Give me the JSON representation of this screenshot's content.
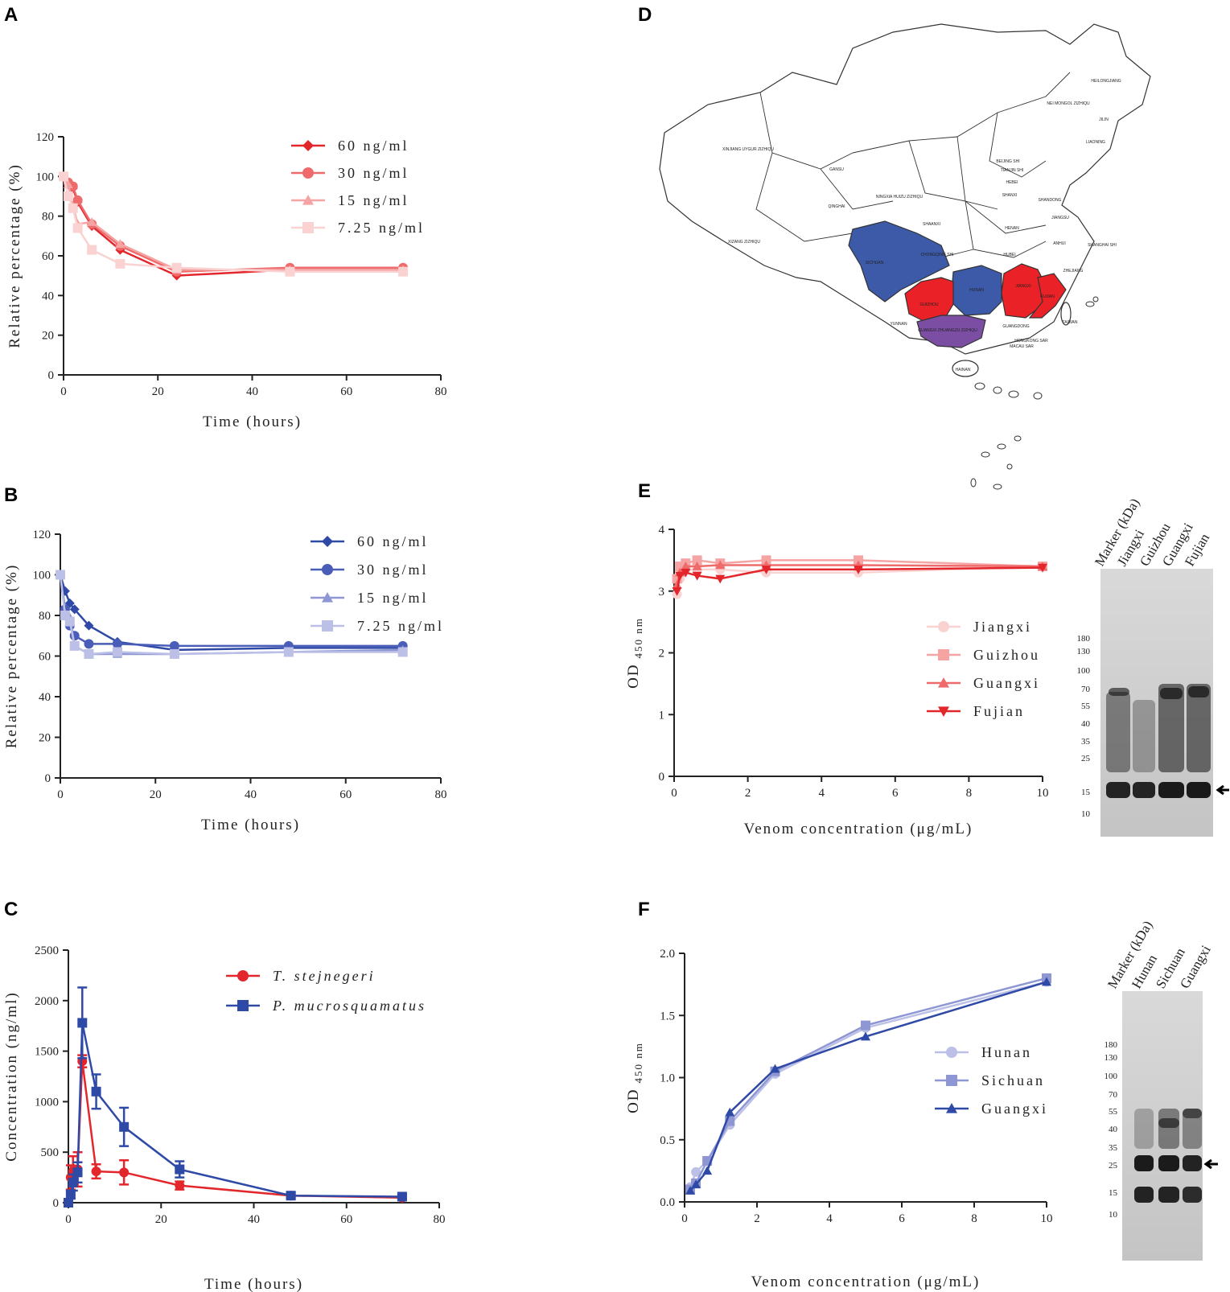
{
  "panels": {
    "A": "A",
    "B": "B",
    "C": "C",
    "D": "D",
    "E": "E",
    "F": "F"
  },
  "colors": {
    "red_dark": "#e3262b",
    "red_mid": "#ef6b6b",
    "red_light": "#f5a3a3",
    "red_pale": "#fad2d2",
    "blue_dark": "#2f4aa6",
    "blue_mid": "#4a5db8",
    "blue_light": "#8e96d3",
    "blue_pale": "#bcc0e6",
    "map_red": "#ea2127",
    "map_blue": "#3c5aa8",
    "map_purple": "#7b4ea3"
  },
  "chart_data": [
    {
      "id": "A",
      "type": "line",
      "xlabel": "Time (hours)",
      "ylabel": "Relative percentage (%)",
      "xlim": [
        0,
        80
      ],
      "ylim": [
        0,
        120
      ],
      "xticks": [
        0,
        20,
        40,
        60,
        80
      ],
      "yticks": [
        0,
        20,
        40,
        60,
        80,
        100,
        120
      ],
      "series": [
        {
          "name": "60 ng/ml",
          "marker": "diamond",
          "color": "#e3262b",
          "x": [
            0,
            1,
            2,
            3,
            6,
            12,
            24,
            48,
            72
          ],
          "y": [
            100,
            96,
            94,
            87,
            75,
            63,
            50,
            53,
            53
          ]
        },
        {
          "name": "30 ng/ml",
          "marker": "circle",
          "color": "#ef6b6b",
          "x": [
            0,
            1,
            2,
            3,
            6,
            12,
            24,
            48,
            72
          ],
          "y": [
            100,
            97,
            95,
            88,
            76,
            65,
            52,
            54,
            54
          ]
        },
        {
          "name": "15 ng/ml",
          "marker": "triangle",
          "color": "#f5a3a3",
          "x": [
            0,
            1,
            2,
            3,
            6,
            12,
            24,
            48,
            72
          ],
          "y": [
            100,
            96,
            85,
            76,
            77,
            66,
            53,
            53,
            53
          ]
        },
        {
          "name": "7.25 ng/ml",
          "marker": "square",
          "color": "#fad2d2",
          "x": [
            0,
            1,
            2,
            3,
            6,
            12,
            24,
            48,
            72
          ],
          "y": [
            100,
            90,
            84,
            74,
            63,
            56,
            54,
            52,
            52
          ]
        }
      ]
    },
    {
      "id": "B",
      "type": "line",
      "xlabel": "Time (hours)",
      "ylabel": "Relative percentage (%)",
      "xlim": [
        0,
        80
      ],
      "ylim": [
        0,
        120
      ],
      "xticks": [
        0,
        20,
        40,
        60,
        80
      ],
      "yticks": [
        0,
        20,
        40,
        60,
        80,
        100,
        120
      ],
      "series": [
        {
          "name": "60 ng/ml",
          "marker": "diamond",
          "color": "#2f4aa6",
          "x": [
            0,
            1,
            2,
            3,
            6,
            12,
            24,
            48,
            72
          ],
          "y": [
            100,
            92,
            86,
            83,
            75,
            67,
            63,
            64,
            64
          ]
        },
        {
          "name": "30 ng/ml",
          "marker": "circle",
          "color": "#4a5db8",
          "x": [
            0,
            1,
            2,
            3,
            6,
            12,
            24,
            48,
            72
          ],
          "y": [
            100,
            83,
            75,
            70,
            66,
            66,
            65,
            65,
            65
          ]
        },
        {
          "name": "15 ng/ml",
          "marker": "triangle",
          "color": "#8e96d3",
          "x": [
            0,
            1,
            2,
            3,
            6,
            12,
            24,
            48,
            72
          ],
          "y": [
            100,
            81,
            79,
            65,
            61,
            61,
            61,
            62,
            63
          ]
        },
        {
          "name": "7.25 ng/ml",
          "marker": "square",
          "color": "#bcc0e6",
          "x": [
            0,
            1,
            2,
            3,
            6,
            12,
            24,
            48,
            72
          ],
          "y": [
            100,
            80,
            77,
            65,
            61,
            62,
            61,
            62,
            62
          ]
        }
      ]
    },
    {
      "id": "C",
      "type": "line",
      "xlabel": "Time (hours)",
      "ylabel": "Concentration (ng/ml)",
      "xlim": [
        0,
        80
      ],
      "ylim": [
        0,
        2500
      ],
      "xticks": [
        0,
        20,
        40,
        60,
        80
      ],
      "yticks": [
        0,
        500,
        1000,
        1500,
        2000,
        2500
      ],
      "series": [
        {
          "name": "T. stejnegeri",
          "italic": true,
          "marker": "circle",
          "color": "#e3262b",
          "x": [
            0,
            0.5,
            1,
            2,
            3,
            6,
            12,
            24,
            48,
            72
          ],
          "y": [
            0,
            250,
            310,
            330,
            1400,
            310,
            300,
            170,
            70,
            50
          ],
          "err": [
            0,
            120,
            150,
            170,
            60,
            70,
            120,
            40,
            20,
            10
          ]
        },
        {
          "name": "P. mucrosquamatus",
          "italic": true,
          "marker": "square",
          "color": "#2f4aa6",
          "x": [
            0,
            0.5,
            1,
            2,
            3,
            6,
            12,
            24,
            48,
            72
          ],
          "y": [
            0,
            80,
            200,
            300,
            1780,
            1100,
            750,
            330,
            70,
            60
          ],
          "err": [
            0,
            40,
            80,
            100,
            350,
            170,
            190,
            80,
            30,
            20
          ]
        }
      ]
    },
    {
      "id": "E",
      "type": "line",
      "xlabel": "Venom concentration (μg/mL)",
      "ylabel": "OD",
      "ylabel_sub": "450 nm",
      "xlim": [
        0,
        10
      ],
      "ylim": [
        0,
        4
      ],
      "xticks": [
        0,
        2,
        4,
        6,
        8,
        10
      ],
      "yticks": [
        0,
        1,
        2,
        3,
        4
      ],
      "series": [
        {
          "name": "Jiangxi",
          "marker": "circle",
          "color": "#fad2d2",
          "x": [
            0.078,
            0.156,
            0.3125,
            0.625,
            1.25,
            2.5,
            5,
            10
          ],
          "y": [
            2.95,
            3.2,
            3.35,
            3.35,
            3.35,
            3.3,
            3.3,
            3.4
          ]
        },
        {
          "name": "Guizhou",
          "marker": "square",
          "color": "#f5a3a3",
          "x": [
            0.078,
            0.156,
            0.3125,
            0.625,
            1.25,
            2.5,
            5,
            10
          ],
          "y": [
            3.2,
            3.4,
            3.45,
            3.5,
            3.45,
            3.5,
            3.5,
            3.4
          ]
        },
        {
          "name": "Guangxi",
          "marker": "triangle",
          "color": "#ef6b6b",
          "x": [
            0.078,
            0.156,
            0.3125,
            0.625,
            1.25,
            2.5,
            5,
            10
          ],
          "y": [
            3.1,
            3.3,
            3.4,
            3.4,
            3.42,
            3.42,
            3.42,
            3.4
          ]
        },
        {
          "name": "Fujian",
          "marker": "triangle-down",
          "color": "#e3262b",
          "x": [
            0.078,
            0.156,
            0.3125,
            0.625,
            1.25,
            2.5,
            5,
            10
          ],
          "y": [
            3.0,
            3.25,
            3.3,
            3.25,
            3.2,
            3.35,
            3.35,
            3.38
          ]
        }
      ]
    },
    {
      "id": "F",
      "type": "line",
      "xlabel": "Venom concentration (μg/mL)",
      "ylabel": "OD",
      "ylabel_sub": "450 nm",
      "xlim": [
        0,
        10
      ],
      "ylim": [
        0,
        2.0
      ],
      "xticks": [
        0,
        2,
        4,
        6,
        8,
        10
      ],
      "yticks": [
        0.0,
        0.5,
        1.0,
        1.5,
        2.0
      ],
      "series": [
        {
          "name": "Hunan",
          "marker": "circle",
          "color": "#bcc0e6",
          "x": [
            0.156,
            0.3125,
            0.625,
            1.25,
            2.5,
            5,
            10
          ],
          "y": [
            0.12,
            0.24,
            0.33,
            0.62,
            1.03,
            1.4,
            1.77
          ]
        },
        {
          "name": "Sichuan",
          "marker": "square",
          "color": "#8e96d3",
          "x": [
            0.156,
            0.3125,
            0.625,
            1.25,
            2.5,
            5,
            10
          ],
          "y": [
            0.1,
            0.15,
            0.33,
            0.65,
            1.05,
            1.42,
            1.8
          ]
        },
        {
          "name": "Guangxi",
          "marker": "triangle",
          "color": "#2f4aa6",
          "x": [
            0.156,
            0.3125,
            0.625,
            1.25,
            2.5,
            5,
            10
          ],
          "y": [
            0.09,
            0.14,
            0.25,
            0.72,
            1.07,
            1.33,
            1.77
          ]
        }
      ]
    }
  ],
  "blotE": {
    "lanes": [
      "Marker (kDa)",
      "Jiangxi",
      "Guizhou",
      "Guangxi",
      "Fujian"
    ],
    "markers": [
      "180",
      "130",
      "100",
      "70",
      "55",
      "40",
      "35",
      "25",
      "15",
      "10"
    ]
  },
  "blotF": {
    "lanes": [
      "Marker (kDa)",
      "Hunan",
      "Sichuan",
      "Guangxi"
    ],
    "markers": [
      "180",
      "130",
      "100",
      "70",
      "55",
      "40",
      "35",
      "25",
      "15",
      "10"
    ]
  },
  "map": {
    "provinces": [
      "XINJIANG UYGUR ZIZHIQU",
      "XIZANG ZIZHIQU",
      "QINGHAI",
      "GANSU",
      "NEI MONGOL ZIZHIQU",
      "HEILONGJIANG",
      "JILIN",
      "LIAONING",
      "HEBEI",
      "SHANXI",
      "SHAANXI",
      "NINGXIA HUIZU ZIZHIQU",
      "HENAN",
      "SHANDONG",
      "JIANGSU",
      "ANHUI",
      "SHANGHAI SHI",
      "HUBEI",
      "ZHEJIANG",
      "CHONGQING SHI",
      "YUNNAN",
      "GUANGDONG",
      "TAIWAN",
      "HAINAN",
      "BEIJING SHI",
      "TIANJIN SHI",
      "SICHUAN",
      "HUNAN",
      "GUIZHOU",
      "JIANGXI",
      "FUJIAN",
      "GUANGXI ZHUANGZU ZIZHIQU",
      "HONGKONG SAR",
      "MACAU SAR"
    ]
  }
}
